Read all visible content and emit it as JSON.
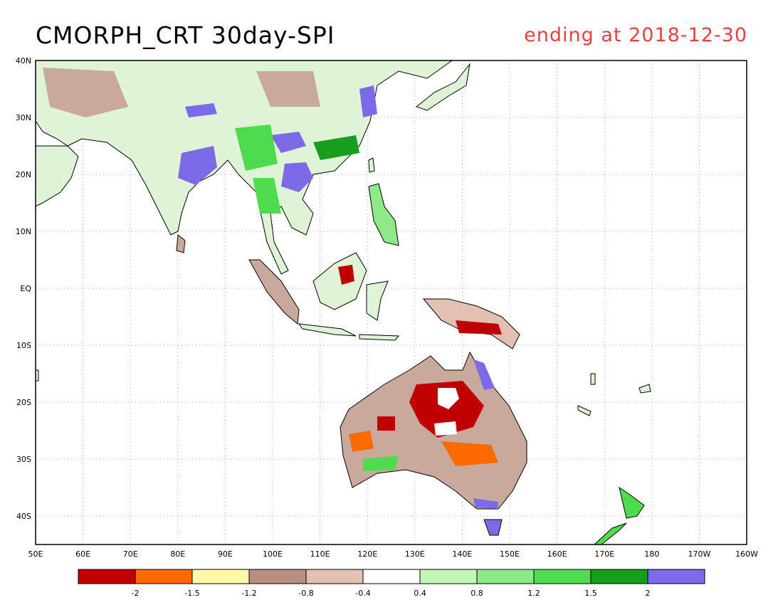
{
  "title": "CMORPH_CRT 30day-SPI",
  "subtitle": "ending at 2018-12-30",
  "map": {
    "lat_ticks": [
      "40N",
      "30N",
      "20N",
      "10N",
      "EQ",
      "10S",
      "20S",
      "30S",
      "40S"
    ],
    "lon_ticks": [
      "50E",
      "60E",
      "70E",
      "80E",
      "90E",
      "100E",
      "110E",
      "120E",
      "130E",
      "140E",
      "150E",
      "160E",
      "170E",
      "180",
      "170W",
      "160W"
    ]
  },
  "legend": {
    "colors": [
      "#c00000",
      "#ff6a00",
      "#fff7a8",
      "#b8907f",
      "#e2c0b2",
      "#ffffff",
      "#c2f7b8",
      "#8eea86",
      "#4edb4e",
      "#189e1e",
      "#7b6be8"
    ],
    "labels": [
      "-2",
      "-1.5",
      "-1.2",
      "-0.8",
      "-0.4",
      "0.4",
      "0.8",
      "1.2",
      "1.5",
      "2"
    ]
  }
}
